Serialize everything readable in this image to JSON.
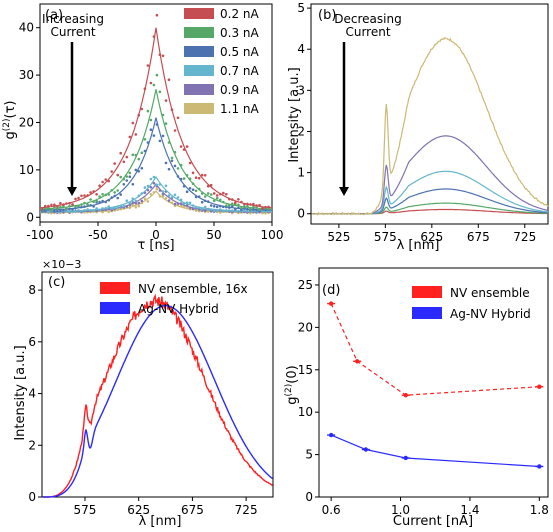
{
  "chart_data": [
    {
      "panel_label": "(a)",
      "type": "scatter",
      "xlabel": "τ [ns]",
      "ylabel": "g(2)(τ)",
      "xlim": [
        -100,
        100
      ],
      "ylim": [
        -1,
        45
      ],
      "xticks": [
        "-100",
        "-50",
        "0",
        "50",
        "100"
      ],
      "yticks": [
        "0",
        "10",
        "20",
        "30",
        "40"
      ],
      "annotation": [
        "Increasing",
        "Current"
      ],
      "legend_placement": "top-right",
      "series": [
        {
          "name": "0.2 nA",
          "color": "#c44e52",
          "peak": 40,
          "base": 1.5,
          "tau": 23
        },
        {
          "name": "0.3 nA",
          "color": "#55a868",
          "peak": 27,
          "base": 1.5,
          "tau": 21
        },
        {
          "name": "0.5 nA",
          "color": "#4c72b0",
          "peak": 21,
          "base": 1.4,
          "tau": 19
        },
        {
          "name": "0.7 nA",
          "color": "#64b5cd",
          "peak": 8.5,
          "base": 1.2,
          "tau": 18
        },
        {
          "name": "0.9 nA",
          "color": "#8172b2",
          "peak": 7,
          "base": 1.1,
          "tau": 17
        },
        {
          "name": "1.1 nA",
          "color": "#ccb974",
          "peak": 5.5,
          "base": 1.0,
          "tau": 16
        }
      ]
    },
    {
      "panel_label": "(b)",
      "type": "line",
      "xlabel": "λ [nm]",
      "ylabel": "Intensity [a.u.]",
      "xlim": [
        495,
        750
      ],
      "ylim": [
        -0.25,
        5.1
      ],
      "xticks": [
        "525",
        "575",
        "625",
        "675",
        "725"
      ],
      "yticks": [
        "0",
        "1",
        "2",
        "3",
        "4",
        "5"
      ],
      "annotation": [
        "Decreasing",
        "Current"
      ],
      "series": [
        {
          "color": "#c44e52",
          "scale": 0.12
        },
        {
          "color": "#55a868",
          "scale": 0.3
        },
        {
          "color": "#4c72b0",
          "scale": 0.7
        },
        {
          "color": "#64b5cd",
          "scale": 1.2
        },
        {
          "color": "#8172b2",
          "scale": 2.2
        },
        {
          "color": "#ccb974",
          "scale": 4.95
        }
      ]
    },
    {
      "panel_label": "(c)",
      "type": "line",
      "xlabel": "λ [nm]",
      "ylabel": "Intensity [a.u.]",
      "multiplier": "×10−3",
      "xlim": [
        535,
        750
      ],
      "ylim": [
        0,
        0.0087
      ],
      "xticks": [
        "575",
        "625",
        "675",
        "725"
      ],
      "yticks": [
        "0",
        "2",
        "4",
        "6",
        "8"
      ],
      "legend_placement": "top-left",
      "series": [
        {
          "name": "NV ensemble, 16x",
          "color": "#ff2020",
          "peak": 0.0076
        },
        {
          "name": "Ag-NV Hybrid",
          "color": "#2a2aff",
          "peak": 0.0074
        }
      ]
    },
    {
      "panel_label": "(d)",
      "type": "line",
      "xlabel": "Current [nA]",
      "ylabel": "g(2)(0)",
      "xlim": [
        0.53,
        1.85
      ],
      "ylim": [
        0,
        27
      ],
      "xticks": [
        "0.6",
        "1.0",
        "1.4",
        "1.8"
      ],
      "yticks": [
        "0",
        "5",
        "10",
        "15",
        "20",
        "25"
      ],
      "legend_placement": "top-right",
      "series": [
        {
          "name": "NV ensemble",
          "color": "#ff2020",
          "style": "dashed",
          "x": [
            0.6,
            0.75,
            1.03,
            1.8
          ],
          "y": [
            22.8,
            16.0,
            12.0,
            13.0
          ]
        },
        {
          "name": "Ag-NV Hybrid",
          "color": "#2a2aff",
          "style": "solid",
          "x": [
            0.6,
            0.8,
            1.03,
            1.8
          ],
          "y": [
            7.3,
            5.6,
            4.6,
            3.6
          ]
        }
      ]
    }
  ]
}
